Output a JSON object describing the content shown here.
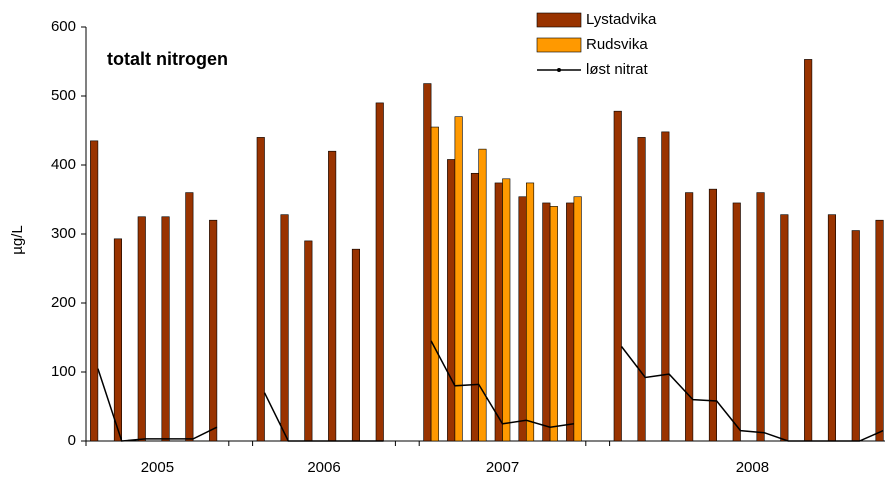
{
  "chart_data": {
    "type": "bar_line",
    "title": "totalt nitrogen",
    "y_label": "µg/L",
    "categories": [
      null,
      null,
      null,
      null,
      null,
      null,
      null,
      null,
      null,
      null,
      null,
      null,
      null,
      null,
      null,
      null,
      null,
      null,
      null,
      null,
      null,
      null,
      null,
      null,
      null,
      null,
      null,
      null,
      null,
      null,
      null,
      null,
      null,
      null
    ],
    "x_groups": [
      {
        "label": "2005",
        "from": 0,
        "to": 5
      },
      {
        "label": "2006",
        "from": 7,
        "to": 12
      },
      {
        "label": "2007",
        "from": 14,
        "to": 20
      },
      {
        "label": "2008",
        "from": 22,
        "to": 33
      }
    ],
    "series": [
      {
        "name": "Lystadvika",
        "kind": "bar",
        "color": "#993300",
        "values": [
          435,
          293,
          325,
          325,
          360,
          320,
          null,
          440,
          328,
          290,
          420,
          278,
          490,
          null,
          518,
          408,
          388,
          374,
          354,
          345,
          345,
          null,
          478,
          440,
          448,
          360,
          365,
          345,
          360,
          328,
          553,
          328,
          305,
          320
        ]
      },
      {
        "name": "Rudsvika",
        "kind": "bar",
        "color": "#ff9900",
        "values": [
          null,
          null,
          null,
          null,
          null,
          null,
          null,
          null,
          null,
          null,
          null,
          null,
          null,
          null,
          455,
          470,
          423,
          380,
          374,
          340,
          354,
          null,
          null,
          null,
          null,
          null,
          null,
          null,
          null,
          null,
          null,
          null,
          null,
          null
        ]
      },
      {
        "name": "løst nitrat",
        "kind": "line",
        "color": "#000000",
        "values": [
          105,
          0,
          3,
          3,
          3,
          20,
          null,
          70,
          0,
          0,
          0,
          0,
          0,
          null,
          145,
          80,
          82,
          25,
          30,
          20,
          25,
          null,
          137,
          92,
          97,
          60,
          58,
          15,
          12,
          0,
          0,
          0,
          0,
          15
        ]
      }
    ],
    "ylim": [
      0,
      600
    ],
    "yticks": [
      0,
      100,
      200,
      300,
      400,
      500,
      600
    ],
    "grid": false,
    "legend": "top-right"
  }
}
